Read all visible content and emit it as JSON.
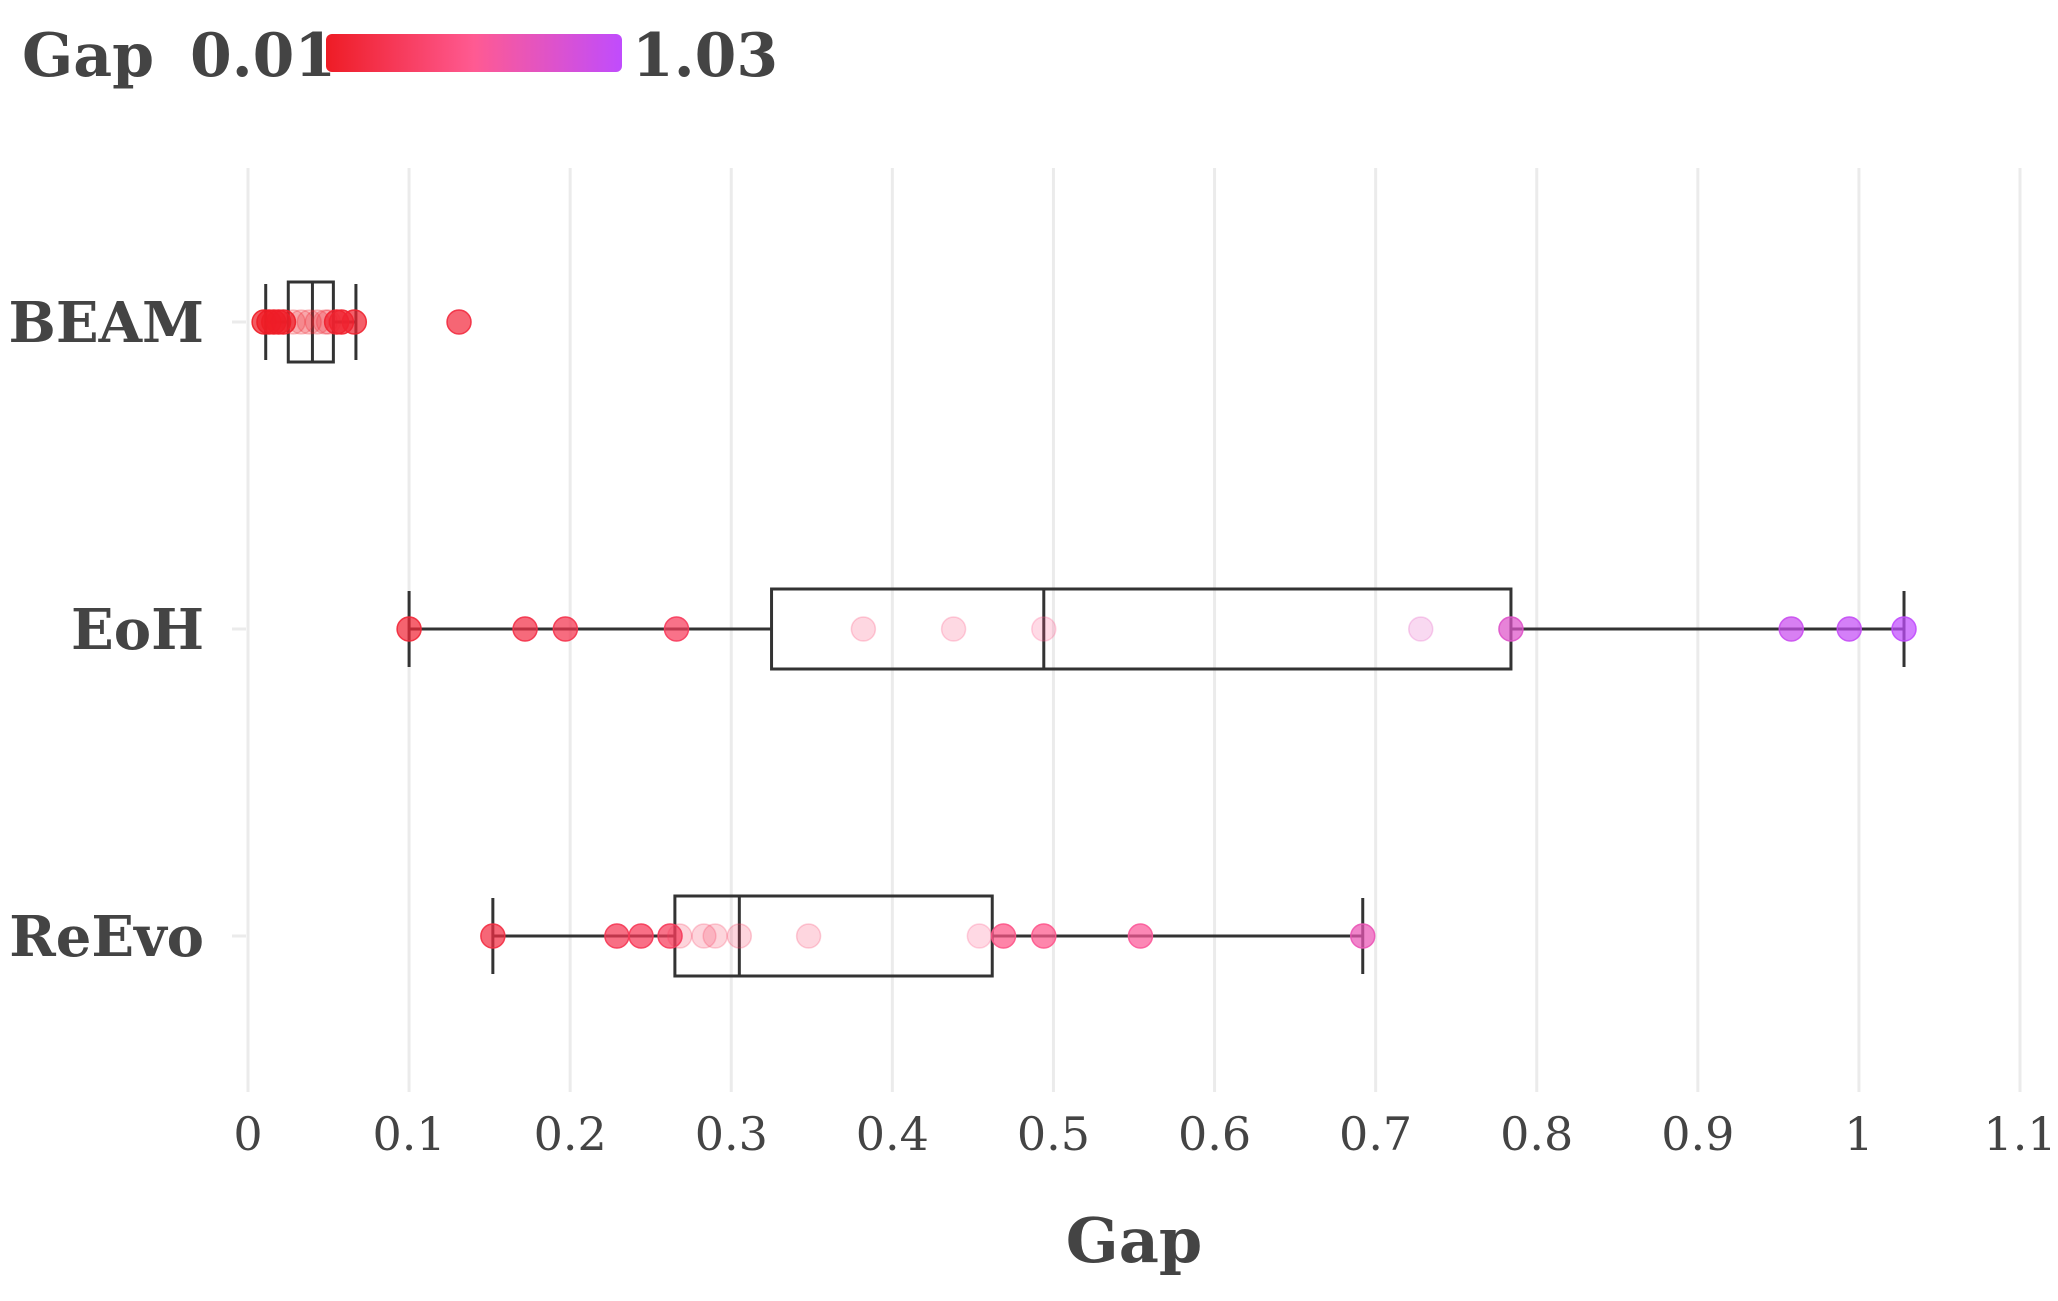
{
  "chart_data": {
    "type": "box",
    "orientation": "horizontal",
    "title": "",
    "xlabel": "Gap",
    "ylabel": "",
    "xlim": [
      0,
      1.1
    ],
    "x_ticks": [
      0,
      0.1,
      0.2,
      0.3,
      0.4,
      0.5,
      0.6,
      0.7,
      0.8,
      0.9,
      1,
      1.1
    ],
    "x_tick_labels": [
      "0",
      "0.1",
      "0.2",
      "0.3",
      "0.4",
      "0.5",
      "0.6",
      "0.7",
      "0.8",
      "0.9",
      "1",
      "1.1"
    ],
    "grid": true,
    "legend": {
      "title": "Gap",
      "min_label": "0.01",
      "max_label": "1.03",
      "min": 0.01,
      "max": 1.03,
      "colors": [
        "#ee1c25",
        "#ff5a92",
        "#c04cfd"
      ],
      "placement": "top-left"
    },
    "categories": [
      "BEAM",
      "EoH",
      "ReEvo"
    ],
    "series": [
      {
        "name": "BEAM",
        "box": {
          "whisker_low": 0.011,
          "q1": 0.025,
          "median": 0.04,
          "q3": 0.053,
          "whisker_high": 0.067
        },
        "points": [
          0.01,
          0.013,
          0.016,
          0.019,
          0.022,
          0.028,
          0.033,
          0.038,
          0.043,
          0.048,
          0.05,
          0.055,
          0.058,
          0.066,
          0.131
        ],
        "outliers": [
          0.131
        ]
      },
      {
        "name": "EoH",
        "box": {
          "whisker_low": 0.1,
          "q1": 0.325,
          "median": 0.494,
          "q3": 0.784,
          "whisker_high": 1.028
        },
        "points": [
          0.1,
          0.172,
          0.197,
          0.266,
          0.382,
          0.438,
          0.494,
          0.728,
          0.784,
          0.958,
          0.994,
          1.028
        ],
        "outliers": []
      },
      {
        "name": "ReEvo",
        "box": {
          "whisker_low": 0.152,
          "q1": 0.265,
          "median": 0.305,
          "q3": 0.462,
          "whisker_high": 0.692
        },
        "points": [
          0.152,
          0.229,
          0.244,
          0.262,
          0.268,
          0.283,
          0.29,
          0.305,
          0.348,
          0.454,
          0.469,
          0.494,
          0.554,
          0.692
        ],
        "outliers": []
      }
    ]
  }
}
